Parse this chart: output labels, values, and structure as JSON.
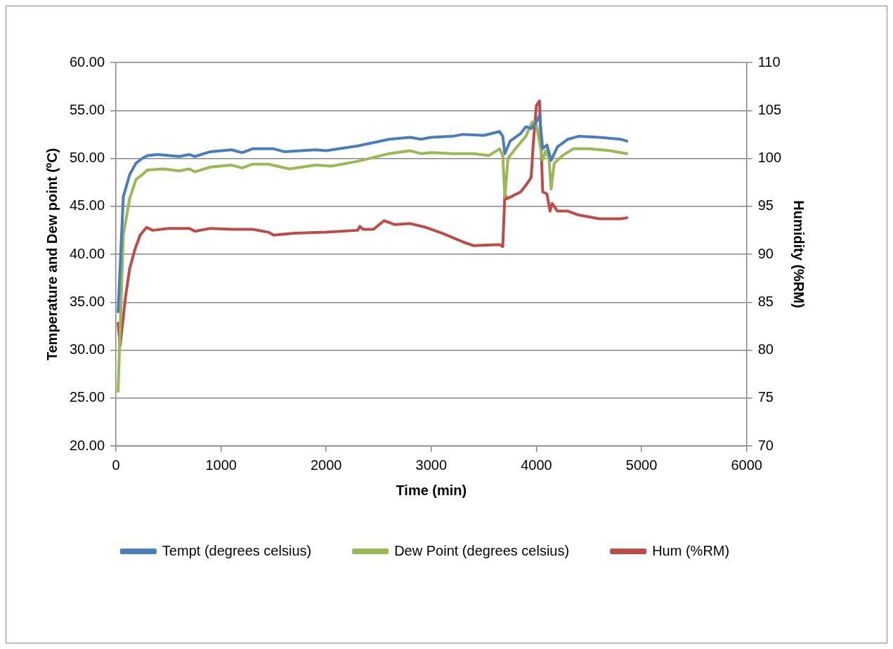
{
  "chart_data": {
    "type": "line",
    "xlabel": "Time (min)",
    "ylabel": "Temperature and Dew point (ºC)",
    "y2label": "Humidity (%RM)",
    "xlim": [
      0,
      6000
    ],
    "xticks": [
      0,
      1000,
      2000,
      3000,
      4000,
      5000,
      6000
    ],
    "ylim": [
      20,
      60
    ],
    "yticks": [
      {
        "value": 20,
        "label": "20.00"
      },
      {
        "value": 25,
        "label": "25.00"
      },
      {
        "value": 30,
        "label": "30.00"
      },
      {
        "value": 35,
        "label": "35.00"
      },
      {
        "value": 40,
        "label": "40.00"
      },
      {
        "value": 45,
        "label": "45.00"
      },
      {
        "value": 50,
        "label": "50.00"
      },
      {
        "value": 55,
        "label": "55.00"
      },
      {
        "value": 60,
        "label": "60.00"
      }
    ],
    "y2lim": [
      70,
      110
    ],
    "y2ticks": [
      70,
      75,
      80,
      85,
      90,
      95,
      100,
      105,
      110
    ],
    "grid": "y",
    "legend": "bottom",
    "marker": "none",
    "line_style": "solid",
    "series": [
      {
        "name": "Tempt (degrees celsius)",
        "color": "#4a7ebb",
        "x": [
          20,
          70,
          130,
          190,
          250,
          300,
          400,
          600,
          700,
          750,
          900,
          1100,
          1200,
          1300,
          1500,
          1600,
          1900,
          2000,
          2300,
          2600,
          2800,
          2900,
          3000,
          3200,
          3300,
          3500,
          3650,
          3680,
          3700,
          3750,
          3850,
          3900,
          3950,
          4000,
          4030,
          4060,
          4100,
          4140,
          4200,
          4300,
          4400,
          4600,
          4800,
          4860
        ],
        "values": [
          34,
          46,
          48.3,
          49.5,
          50,
          50.3,
          50.4,
          50.2,
          50.4,
          50.2,
          50.7,
          50.9,
          50.6,
          51,
          51,
          50.7,
          50.9,
          50.8,
          51.3,
          52,
          52.2,
          52,
          52.2,
          52.3,
          52.5,
          52.4,
          52.8,
          52.3,
          50.5,
          51.8,
          52.6,
          53.3,
          53.1,
          53.8,
          54.5,
          51,
          51.4,
          49.8,
          51.2,
          52,
          52.3,
          52.2,
          52,
          51.8
        ]
      },
      {
        "name": "Dew Point (degrees celsius)",
        "color": "#98b954",
        "x": [
          20,
          70,
          130,
          190,
          250,
          300,
          450,
          600,
          700,
          750,
          900,
          1100,
          1200,
          1300,
          1450,
          1650,
          1900,
          2050,
          2300,
          2600,
          2800,
          2900,
          3000,
          3200,
          3400,
          3550,
          3650,
          3680,
          3700,
          3730,
          3800,
          3900,
          3960,
          4000,
          4060,
          4090,
          4120,
          4140,
          4170,
          4250,
          4350,
          4500,
          4700,
          4860
        ],
        "values": [
          25.7,
          42,
          45.8,
          47.8,
          48.3,
          48.8,
          48.9,
          48.7,
          48.9,
          48.6,
          49.1,
          49.3,
          49,
          49.4,
          49.4,
          48.9,
          49.3,
          49.2,
          49.7,
          50.5,
          50.8,
          50.5,
          50.6,
          50.5,
          50.5,
          50.3,
          51,
          50.3,
          46,
          50,
          51,
          52.3,
          53.8,
          53.5,
          49.8,
          50.8,
          50,
          46.8,
          49.5,
          50.3,
          51,
          51,
          50.8,
          50.5
        ]
      },
      {
        "name": "Hum (%RM)",
        "color": "#be4b48",
        "axis": "y2",
        "x": [
          20,
          40,
          90,
          130,
          180,
          230,
          290,
          350,
          500,
          700,
          750,
          900,
          1100,
          1300,
          1450,
          1500,
          1700,
          2000,
          2300,
          2320,
          2350,
          2450,
          2550,
          2650,
          2800,
          2950,
          3100,
          3300,
          3400,
          3650,
          3680,
          3700,
          3720,
          3850,
          3900,
          3950,
          3970,
          4000,
          4030,
          4060,
          4100,
          4130,
          4150,
          4200,
          4300,
          4400,
          4600,
          4800,
          4860
        ],
        "values": [
          82.8,
          80.5,
          85.5,
          88.5,
          90.5,
          92,
          92.8,
          92.5,
          92.7,
          92.7,
          92.4,
          92.7,
          92.6,
          92.6,
          92.3,
          92,
          92.2,
          92.3,
          92.5,
          92.9,
          92.6,
          92.6,
          93.5,
          93.1,
          93.2,
          92.8,
          92.2,
          91.3,
          90.9,
          91,
          90.8,
          96.3,
          95.8,
          96.5,
          97.2,
          98,
          101.5,
          105.5,
          106,
          96.5,
          96.3,
          94.5,
          95.3,
          94.5,
          94.5,
          94.1,
          93.7,
          93.7,
          93.8
        ]
      }
    ]
  }
}
